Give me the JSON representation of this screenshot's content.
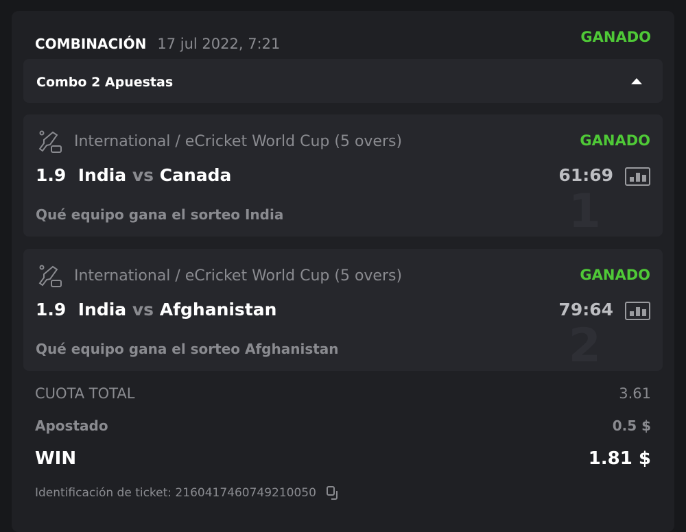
{
  "header": {
    "title": "COMBINACIÓN",
    "date": "17 jul 2022, 7:21",
    "status": "GANADO"
  },
  "combo": {
    "label": "Combo 2 Apuestas"
  },
  "bets": [
    {
      "index": "1",
      "league": "International / eCricket World Cup (5 overs)",
      "status": "GANADO",
      "odds": "1.9",
      "home": "India",
      "vs": "vs",
      "away": "Canada",
      "score": "61:69",
      "event": "Qué equipo gana el sorteo India"
    },
    {
      "index": "2",
      "league": "International / eCricket World Cup (5 overs)",
      "status": "GANADO",
      "odds": "1.9",
      "home": "India",
      "vs": "vs",
      "away": "Afghanistan",
      "score": "79:64",
      "event": "Qué equipo gana el sorteo Afghanistan"
    }
  ],
  "summary": {
    "total_odds_label": "CUOTA TOTAL",
    "total_odds": "3.61",
    "stake_label": "Apostado",
    "stake": "0.5 $",
    "win_label": "WIN",
    "win": "1.81 $"
  },
  "ticket": {
    "label": "Identificación de ticket: 2160417460749210050"
  },
  "colors": {
    "won": "#4fc937",
    "background": "#1f2024"
  }
}
